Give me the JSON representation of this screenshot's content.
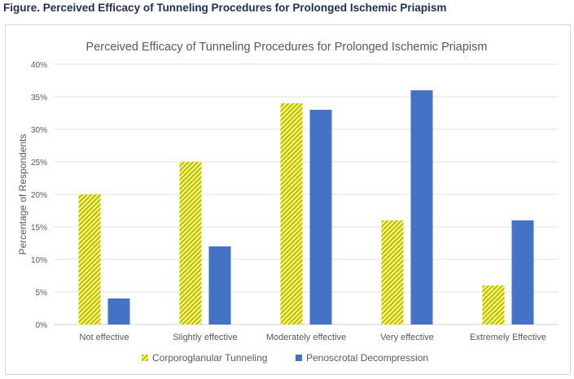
{
  "figure_caption": "Figure. Perceived Efficacy of Tunneling Procedures for Prolonged Ischemic Priapism",
  "chart_data": {
    "type": "bar",
    "title": "Perceived Efficacy of Tunneling Procedures for Prolonged Ischemic Priapism",
    "xlabel": "",
    "ylabel": "Percentage of Respondents",
    "ylim": [
      0,
      40
    ],
    "y_ticks": [
      "0%",
      "5%",
      "10%",
      "15%",
      "20%",
      "25%",
      "30%",
      "35%",
      "40%"
    ],
    "grid": true,
    "legend_position": "bottom",
    "categories": [
      "Not effective",
      "Slightly effective",
      "Moderately effective",
      "Very effective",
      "Extremely Effective"
    ],
    "series": [
      {
        "name": "Corporoglanular Tunneling",
        "values": [
          20,
          25,
          34,
          16,
          6
        ],
        "color": "#c8c800",
        "pattern": "diagonal-hatch"
      },
      {
        "name": "Penoscrotal Decompression",
        "values": [
          4,
          12,
          33,
          36,
          16
        ],
        "color": "#4472c4",
        "pattern": "solid"
      }
    ]
  }
}
